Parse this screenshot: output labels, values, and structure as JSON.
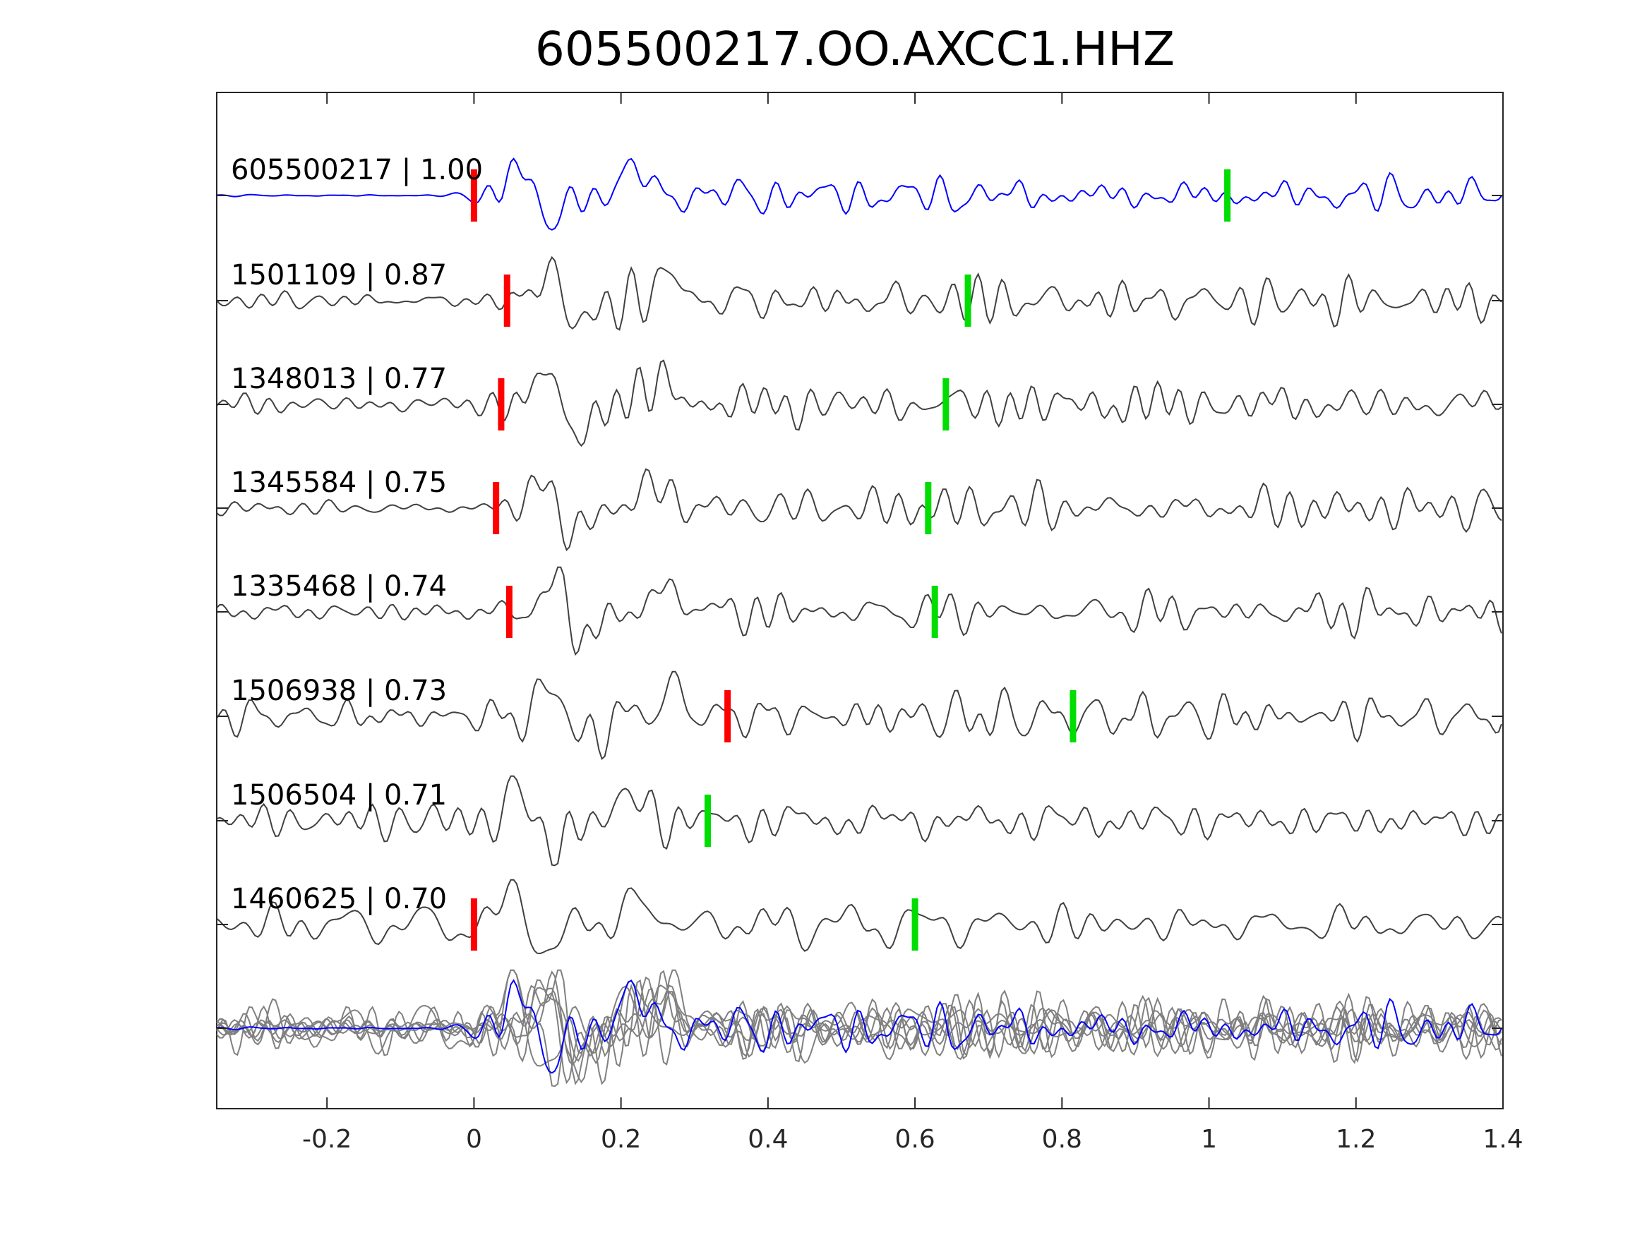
{
  "chart_data": {
    "type": "line",
    "title": "605500217.OO.AXCC1.HHZ",
    "xlim": [
      -0.35,
      1.4
    ],
    "xticks": [
      -0.2,
      0,
      0.2,
      0.4,
      0.6,
      0.8,
      1,
      1.2,
      1.4
    ],
    "xtick_labels": [
      "-0.2",
      "0",
      "0.2",
      "0.4",
      "0.6",
      "0.8",
      "1",
      "1.2",
      "1.4"
    ],
    "grid": false,
    "colors": {
      "template": "#0000ff",
      "neighbor": "#404040",
      "stack": "#808080",
      "p_pick": "#ff0000",
      "s_pick": "#00dd00"
    },
    "traces": [
      {
        "id": "605500217",
        "cc": "1.00",
        "label": "605500217 | 1.00",
        "p_pick": 0.0,
        "s_pick": 1.025,
        "color": "template"
      },
      {
        "id": "1501109",
        "cc": "0.87",
        "label": "1501109 | 0.87",
        "p_pick": 0.045,
        "s_pick": 0.672,
        "color": "neighbor"
      },
      {
        "id": "1348013",
        "cc": "0.77",
        "label": "1348013 | 0.77",
        "p_pick": 0.037,
        "s_pick": 0.642,
        "color": "neighbor"
      },
      {
        "id": "1345584",
        "cc": "0.75",
        "label": "1345584 | 0.75",
        "p_pick": 0.03,
        "s_pick": 0.618,
        "color": "neighbor"
      },
      {
        "id": "1335468",
        "cc": "0.74",
        "label": "1335468 | 0.74",
        "p_pick": 0.048,
        "s_pick": 0.627,
        "color": "neighbor"
      },
      {
        "id": "1506938",
        "cc": "0.73",
        "label": "1506938 | 0.73",
        "p_pick": 0.345,
        "s_pick": 0.815,
        "color": "neighbor"
      },
      {
        "id": "1506504",
        "cc": "0.71",
        "label": "1506504 | 0.71",
        "p_pick": null,
        "s_pick": 0.318,
        "color": "neighbor"
      },
      {
        "id": "1460625",
        "cc": "0.70",
        "label": "1460625 | 0.70",
        "p_pick": 0.0,
        "s_pick": 0.6,
        "color": "neighbor"
      }
    ],
    "stack_overlay": true
  }
}
